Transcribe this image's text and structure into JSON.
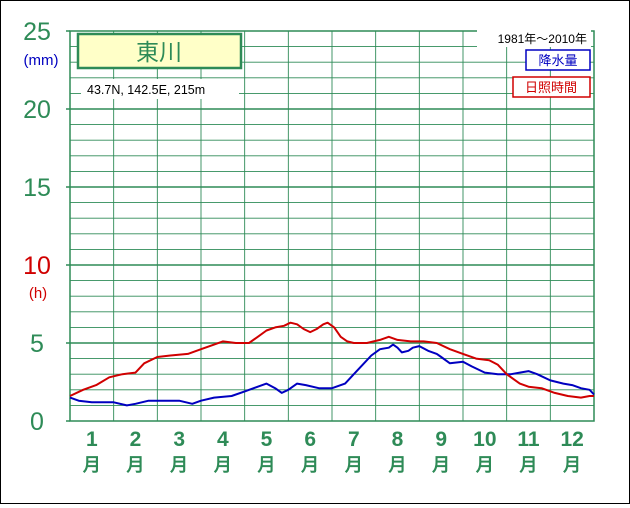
{
  "chart_data": {
    "type": "line",
    "station": "東川",
    "location": "43.7N,  142.5E,  215m",
    "period": "1981年〜2010年",
    "y_unit_precip": "(mm)",
    "y_unit_sun": "(h)",
    "ylim": [
      0,
      25
    ],
    "yticks": [
      {
        "v": 0,
        "label": "0",
        "color": "#2e8b57"
      },
      {
        "v": 5,
        "label": "5",
        "color": "#2e8b57"
      },
      {
        "v": 10,
        "label": "10",
        "color": "#d00000"
      },
      {
        "v": 15,
        "label": "15",
        "color": "#2e8b57"
      },
      {
        "v": 20,
        "label": "20",
        "color": "#2e8b57"
      },
      {
        "v": 25,
        "label": "25",
        "color": "#2e8b57"
      }
    ],
    "months": [
      "1",
      "2",
      "3",
      "4",
      "5",
      "6",
      "7",
      "8",
      "9",
      "10",
      "11",
      "12"
    ],
    "month_suffix": "月",
    "x_range": [
      0.5,
      12.5
    ],
    "series": [
      {
        "name": "降水量",
        "color": "#0000c0",
        "points": [
          [
            0.5,
            1.5
          ],
          [
            0.7,
            1.3
          ],
          [
            1.0,
            1.2
          ],
          [
            1.5,
            1.2
          ],
          [
            1.8,
            1.0
          ],
          [
            2.0,
            1.1
          ],
          [
            2.3,
            1.3
          ],
          [
            2.6,
            1.3
          ],
          [
            3.0,
            1.3
          ],
          [
            3.3,
            1.1
          ],
          [
            3.5,
            1.3
          ],
          [
            3.8,
            1.5
          ],
          [
            4.2,
            1.6
          ],
          [
            4.5,
            1.9
          ],
          [
            4.8,
            2.2
          ],
          [
            5.0,
            2.4
          ],
          [
            5.2,
            2.1
          ],
          [
            5.35,
            1.8
          ],
          [
            5.5,
            2.0
          ],
          [
            5.7,
            2.4
          ],
          [
            5.9,
            2.3
          ],
          [
            6.2,
            2.1
          ],
          [
            6.5,
            2.1
          ],
          [
            6.8,
            2.4
          ],
          [
            7.0,
            3.0
          ],
          [
            7.2,
            3.6
          ],
          [
            7.4,
            4.2
          ],
          [
            7.6,
            4.6
          ],
          [
            7.8,
            4.7
          ],
          [
            7.9,
            4.9
          ],
          [
            8.0,
            4.7
          ],
          [
            8.1,
            4.4
          ],
          [
            8.25,
            4.5
          ],
          [
            8.35,
            4.7
          ],
          [
            8.5,
            4.8
          ],
          [
            8.7,
            4.5
          ],
          [
            8.9,
            4.3
          ],
          [
            9.0,
            4.1
          ],
          [
            9.2,
            3.7
          ],
          [
            9.5,
            3.8
          ],
          [
            9.7,
            3.5
          ],
          [
            10.0,
            3.1
          ],
          [
            10.3,
            3.0
          ],
          [
            10.6,
            3.0
          ],
          [
            10.8,
            3.1
          ],
          [
            11.0,
            3.2
          ],
          [
            11.2,
            3.0
          ],
          [
            11.5,
            2.6
          ],
          [
            11.8,
            2.4
          ],
          [
            12.0,
            2.3
          ],
          [
            12.2,
            2.1
          ],
          [
            12.4,
            2.0
          ],
          [
            12.5,
            1.7
          ]
        ]
      },
      {
        "name": "日照時間",
        "color": "#d00000",
        "points": [
          [
            0.5,
            1.6
          ],
          [
            0.8,
            2.0
          ],
          [
            1.1,
            2.3
          ],
          [
            1.4,
            2.8
          ],
          [
            1.7,
            3.0
          ],
          [
            2.0,
            3.1
          ],
          [
            2.2,
            3.7
          ],
          [
            2.5,
            4.1
          ],
          [
            2.8,
            4.2
          ],
          [
            3.2,
            4.3
          ],
          [
            3.5,
            4.6
          ],
          [
            3.8,
            4.9
          ],
          [
            4.0,
            5.1
          ],
          [
            4.3,
            5.0
          ],
          [
            4.6,
            5.0
          ],
          [
            4.8,
            5.4
          ],
          [
            5.0,
            5.8
          ],
          [
            5.2,
            6.0
          ],
          [
            5.4,
            6.1
          ],
          [
            5.55,
            6.3
          ],
          [
            5.7,
            6.2
          ],
          [
            5.85,
            5.9
          ],
          [
            6.0,
            5.7
          ],
          [
            6.15,
            5.9
          ],
          [
            6.3,
            6.2
          ],
          [
            6.4,
            6.3
          ],
          [
            6.55,
            6.0
          ],
          [
            6.7,
            5.4
          ],
          [
            6.85,
            5.1
          ],
          [
            7.0,
            5.0
          ],
          [
            7.3,
            5.0
          ],
          [
            7.6,
            5.2
          ],
          [
            7.8,
            5.4
          ],
          [
            8.0,
            5.2
          ],
          [
            8.3,
            5.1
          ],
          [
            8.6,
            5.1
          ],
          [
            8.9,
            5.0
          ],
          [
            9.2,
            4.6
          ],
          [
            9.5,
            4.3
          ],
          [
            9.8,
            4.0
          ],
          [
            10.1,
            3.9
          ],
          [
            10.3,
            3.6
          ],
          [
            10.5,
            3.0
          ],
          [
            10.8,
            2.4
          ],
          [
            11.0,
            2.2
          ],
          [
            11.3,
            2.1
          ],
          [
            11.6,
            1.8
          ],
          [
            11.9,
            1.6
          ],
          [
            12.2,
            1.5
          ],
          [
            12.4,
            1.6
          ],
          [
            12.5,
            1.6
          ]
        ]
      }
    ]
  }
}
